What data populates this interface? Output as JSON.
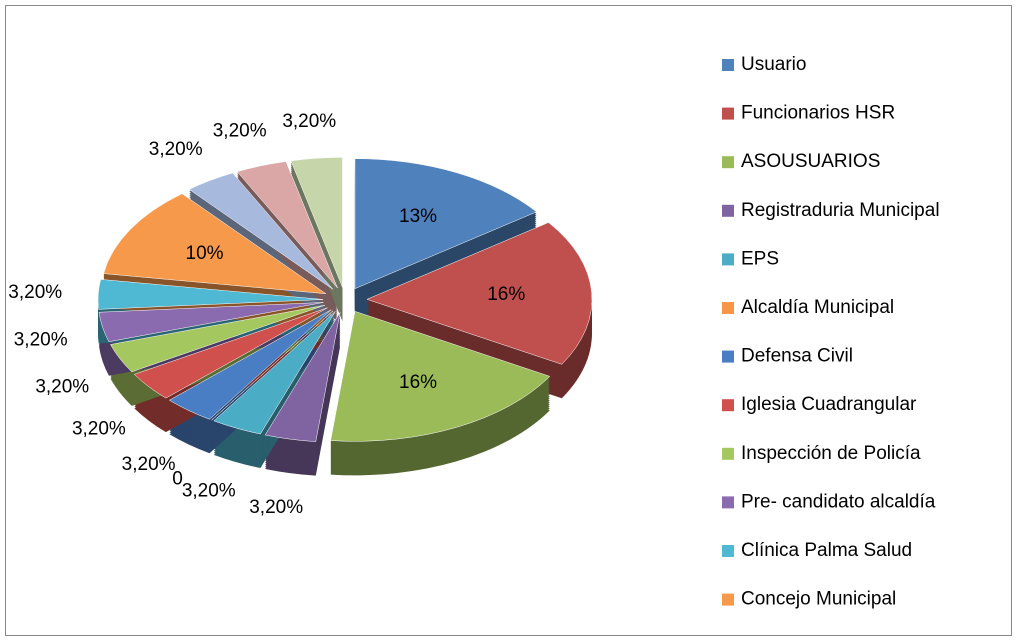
{
  "chart_data": {
    "type": "pie",
    "categories": [
      "Usuario",
      "Funcionarios HSR",
      "ASOUSUARIOS",
      "Registraduria Municipal",
      "EPS",
      "Alcaldía Municipal",
      "Defensa Civil",
      "Iglesia Cuadrangular",
      "Inspección de Policía",
      "Pre- candidato alcaldía",
      "Clínica Palma Salud",
      "Concejo Municipal",
      null,
      null,
      null
    ],
    "values": [
      13,
      16,
      16,
      3.2,
      3.2,
      0,
      3.2,
      3.2,
      3.2,
      3.2,
      3.2,
      10,
      3.2,
      3.2,
      3.2
    ],
    "value_labels": [
      "13%",
      "16%",
      "16%",
      "3,20%",
      "3,20%",
      "0",
      "3,20%",
      "3,20%",
      "3,20%",
      "3,20%",
      "3,20%",
      "10%",
      "3,20%",
      "3,20%",
      "3,20%"
    ],
    "colors": [
      "#4F81BD",
      "#C0504D",
      "#9BBB59",
      "#8064A2",
      "#4BACC6",
      "#F79646",
      "#4A7EC4",
      "#D0504D",
      "#A5C75F",
      "#8A6BB0",
      "#4FB8D2",
      "#F7994A",
      "#A7B9DD",
      "#DBA7A6",
      "#C6D6AA"
    ],
    "legend": "right"
  }
}
